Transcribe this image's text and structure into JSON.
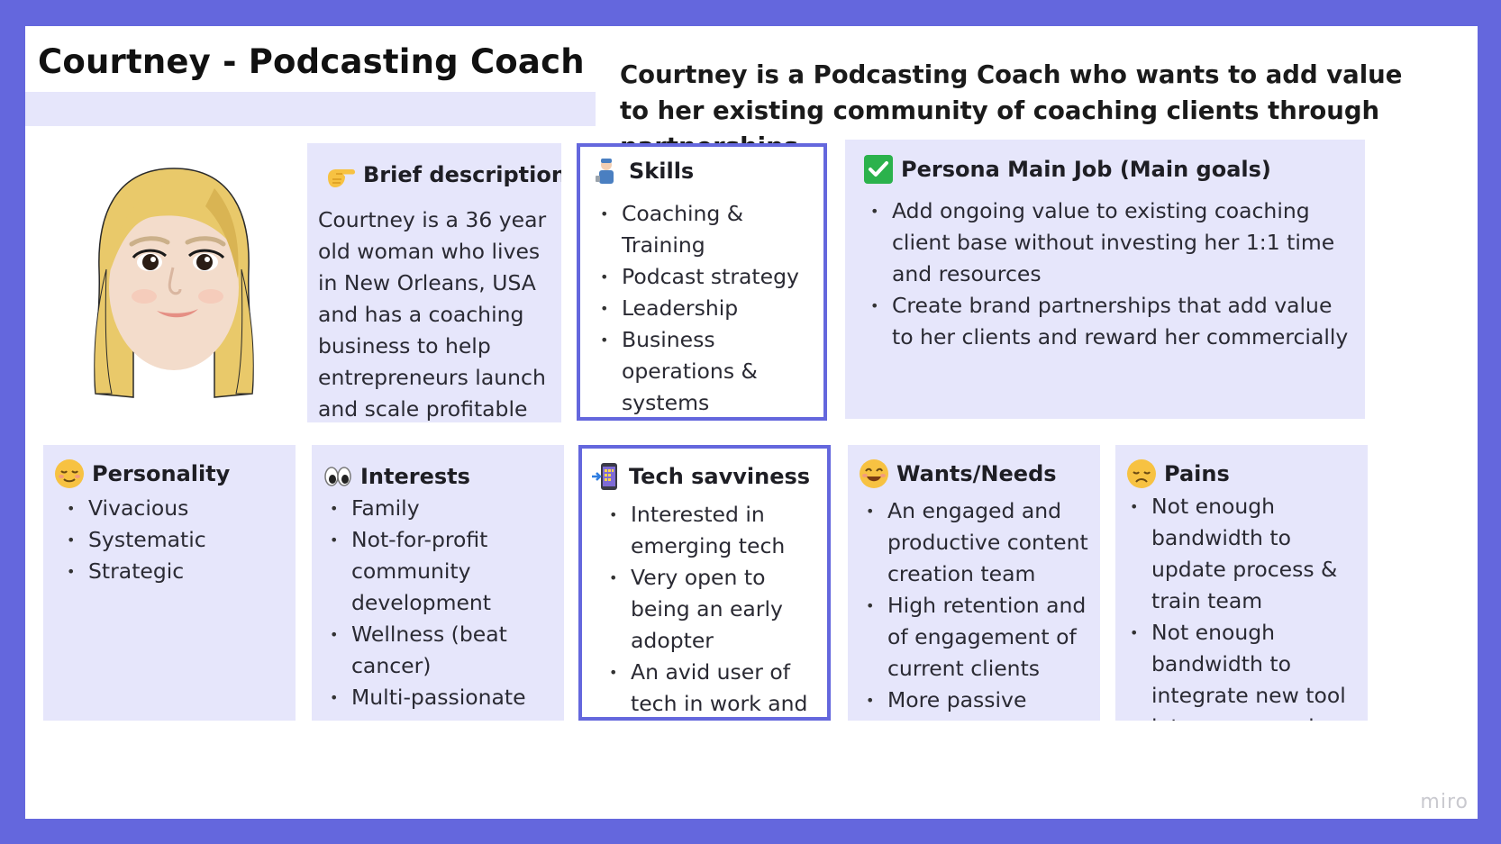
{
  "page": {
    "title": "Courtney - Podcasting Coach",
    "summary": "Courtney is a Podcasting Coach who wants to add value to her existing community of coaching clients through partnerships",
    "watermark": "miro"
  },
  "colors": {
    "frame": "#6467dd",
    "card": "#e6e6fb",
    "board": "#ffffff"
  },
  "avatar": {
    "icon": "memoji-avatar"
  },
  "brief": {
    "icon": "pointing-hand-icon",
    "title": "Brief description",
    "text": "Courtney is a 36 year old woman who lives in New Orleans, USA and has a coaching business  to help entrepreneurs launch and scale profitable podcasts"
  },
  "skills": {
    "icon": "mechanic-icon",
    "title": "Skills",
    "items": [
      "Coaching & Training",
      "Podcast strategy",
      "Leadership",
      "Business operations & systems"
    ]
  },
  "main_job": {
    "icon": "check-mark-icon",
    "title": "Persona Main Job (Main goals)",
    "items": [
      "Add ongoing value to existing coaching client base without investing her 1:1 time and resources",
      "Create brand partnerships that add value to her clients and reward her commercially"
    ]
  },
  "personality": {
    "icon": "relieved-face-icon",
    "title": "Personality",
    "items": [
      "Vivacious",
      "Systematic",
      "Strategic"
    ]
  },
  "interests": {
    "icon": "eyes-icon",
    "title": "Interests",
    "items": [
      "Family",
      "Not-for-profit community development",
      "Wellness (beat cancer)",
      "Multi-passionate"
    ]
  },
  "tech": {
    "icon": "phone-arrow-icon",
    "title": "Tech savviness",
    "items": [
      "Interested in emerging tech",
      "Very open to being an early adopter",
      "An avid user of tech in work and personal life"
    ]
  },
  "wants": {
    "icon": "smiling-face-icon",
    "title": "Wants/Needs",
    "items": [
      "An engaged and productive content creation team",
      "High retention and of engagement of current clients",
      "More passive income"
    ]
  },
  "pains": {
    "icon": "disappointed-face-icon",
    "title": "Pains",
    "items": [
      "Not enough bandwidth to update process & train team",
      "Not enough bandwidth to integrate new tool into coursework"
    ]
  }
}
